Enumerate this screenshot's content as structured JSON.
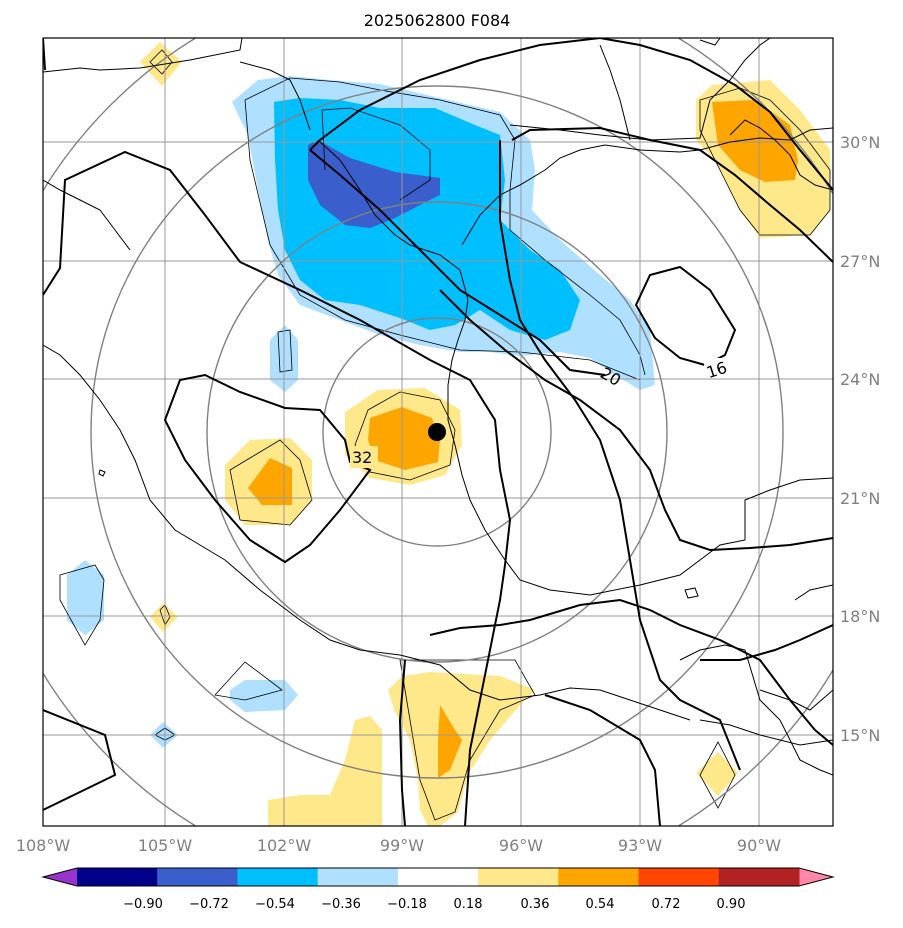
{
  "title": "2025062800 F084",
  "lon_ticks": [
    "108°W",
    "105°W",
    "102°W",
    "99°W",
    "96°W",
    "93°W",
    "90°W"
  ],
  "lat_ticks": [
    "30°N",
    "27°N",
    "24°N",
    "21°N",
    "18°N",
    "15°N"
  ],
  "contour_labels": [
    "32",
    "20",
    "16"
  ],
  "colorbar": {
    "labels": [
      "−0.90",
      "−0.72",
      "−0.54",
      "−0.36",
      "−0.18",
      "0.18",
      "0.36",
      "0.54",
      "0.72",
      "0.90"
    ],
    "colors": [
      "#9933cc",
      "#00008b",
      "#3a5fcd",
      "#00bfff",
      "#b0e0ff",
      "#ffffff",
      "#ffe88a",
      "#ffa500",
      "#ff4500",
      "#b22222",
      "#ff88aa"
    ]
  },
  "fill_colors": {
    "light_blue": "#b0e0ff",
    "blue": "#00bfff",
    "dark_blue": "#3a5fcd",
    "light_yellow": "#ffe88a",
    "orange": "#ffa500"
  },
  "marker_icon": "storm-center-dot"
}
